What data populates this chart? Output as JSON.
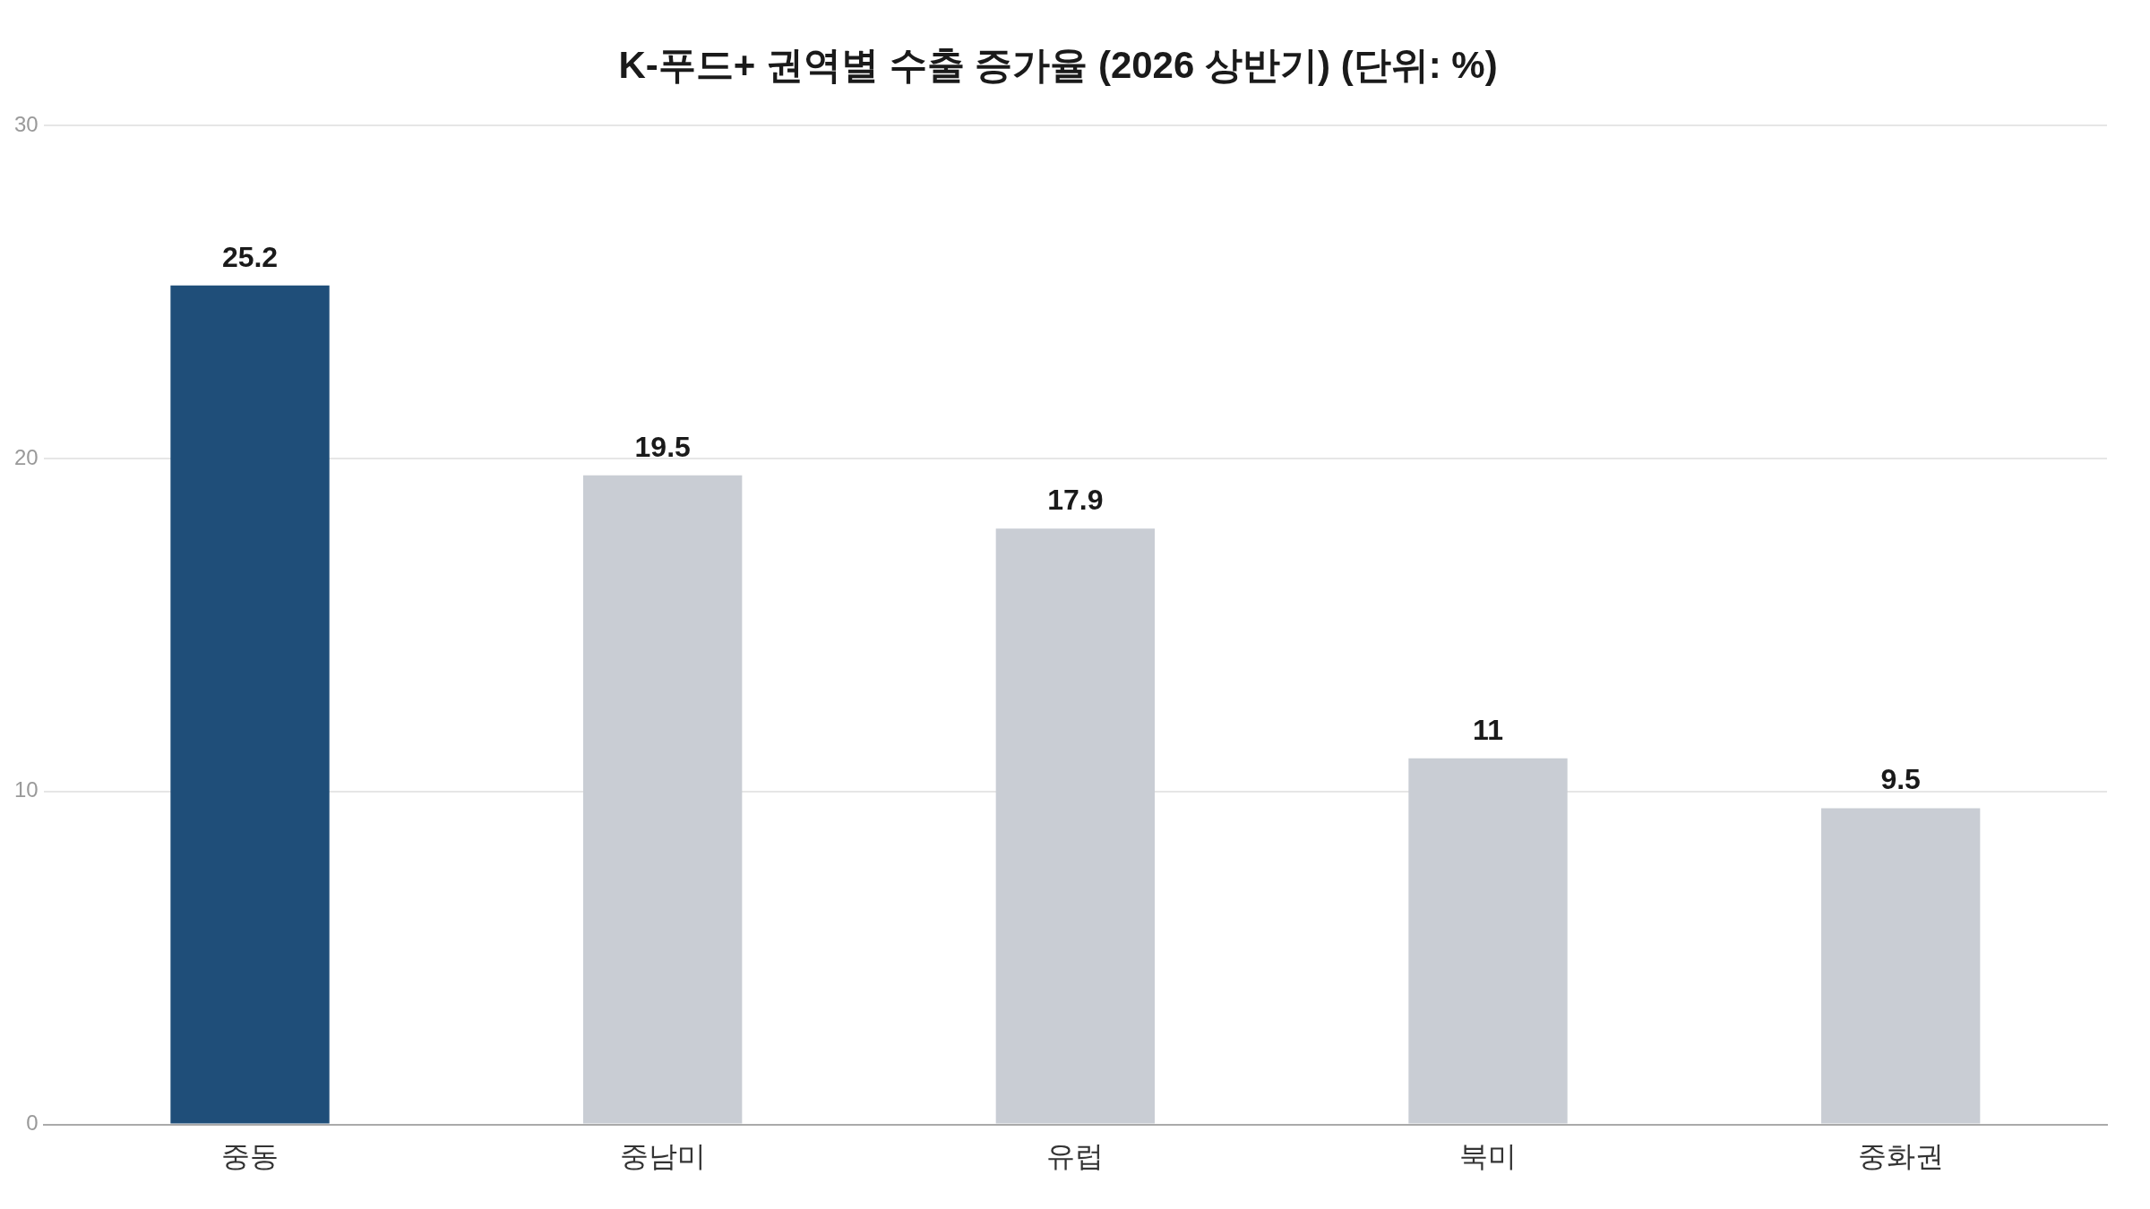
{
  "chart_data": {
    "type": "bar",
    "title": "K-푸드+ 권역별 수출 증가율 (2026 상반기) (단위: %)",
    "categories": [
      "중동",
      "중남미",
      "유럽",
      "북미",
      "중화권"
    ],
    "values": [
      25.2,
      19.5,
      17.9,
      11,
      9.5
    ],
    "colors": [
      "#1f4e79",
      "#c9cdd4",
      "#c9cdd4",
      "#c9cdd4",
      "#c9cdd4"
    ],
    "ylim": [
      0,
      30
    ],
    "yticks": [
      0,
      10,
      20,
      30
    ],
    "grid": "y",
    "data_labels": true,
    "legend": false
  }
}
